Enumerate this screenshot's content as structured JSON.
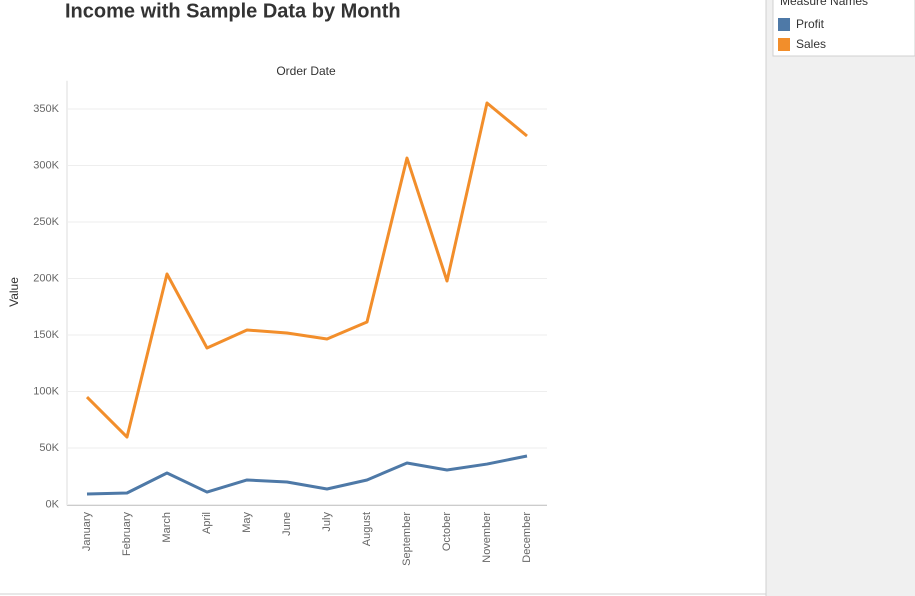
{
  "chart_data": {
    "type": "line",
    "title": "Income with Sample Data by Month",
    "column_header": "Order Date",
    "y_label": "Value",
    "legend_title": "Measure Names",
    "categories": [
      "January",
      "February",
      "March",
      "April",
      "May",
      "June",
      "July",
      "August",
      "September",
      "October",
      "November",
      "December"
    ],
    "series": [
      {
        "name": "Profit",
        "color": "#4e79a7",
        "values": [
          9300,
          10200,
          27900,
          11000,
          21700,
          19900,
          13700,
          21700,
          36700,
          30500,
          35800,
          42900
        ]
      },
      {
        "name": "Sales",
        "color": "#f28e2b",
        "values": [
          95100,
          59700,
          204000,
          138500,
          154400,
          151800,
          146500,
          161500,
          306600,
          197800,
          355300,
          326100
        ]
      }
    ],
    "ylim": [
      0,
      375000
    ],
    "yticks": [
      {
        "value": 0,
        "label": "0K"
      },
      {
        "value": 50000,
        "label": "50K"
      },
      {
        "value": 100000,
        "label": "100K"
      },
      {
        "value": 150000,
        "label": "150K"
      },
      {
        "value": 200000,
        "label": "200K"
      },
      {
        "value": 250000,
        "label": "250K"
      },
      {
        "value": 300000,
        "label": "300K"
      },
      {
        "value": 350000,
        "label": "350K"
      }
    ],
    "grid": true
  }
}
